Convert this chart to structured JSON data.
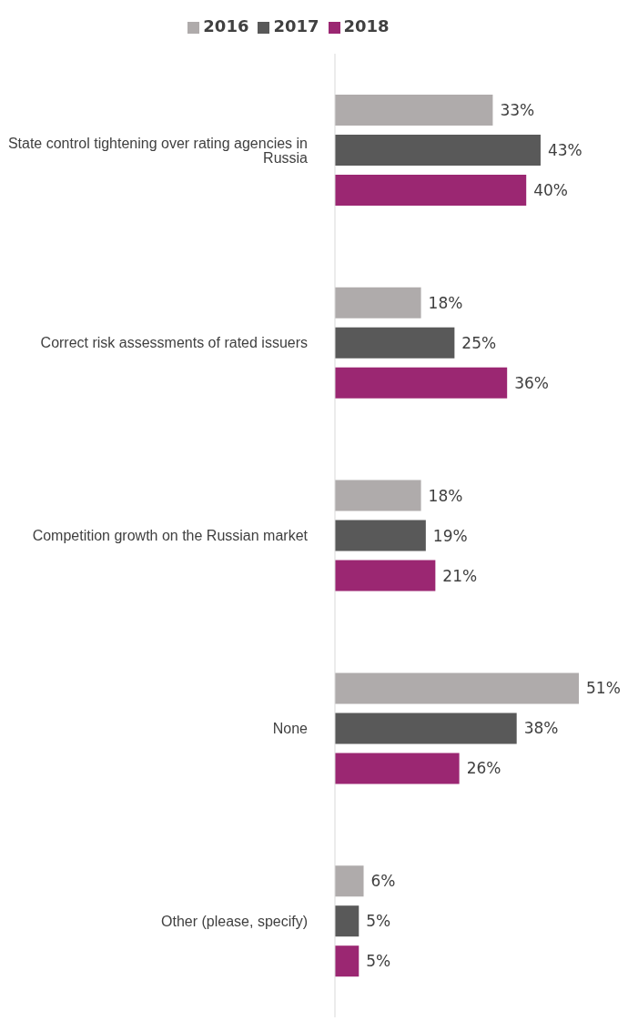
{
  "chart_data": {
    "type": "bar",
    "orientation": "horizontal",
    "legend": "top",
    "categories": [
      "State control tightening over rating agencies in Russia",
      "Correct risk assessments of rated issuers",
      "Competition growth on the Russian market",
      "None",
      "Other (please, specify)"
    ],
    "series": [
      {
        "name": "2016",
        "color": "#afabab",
        "values": [
          33,
          18,
          18,
          51,
          6
        ],
        "value_labels": [
          "33%",
          "18%",
          "18%",
          "51%",
          "6%"
        ]
      },
      {
        "name": "2017",
        "color": "#595959",
        "values": [
          43,
          25,
          19,
          38,
          5
        ],
        "value_labels": [
          "43%",
          "25%",
          "19%",
          "38%",
          "5%"
        ]
      },
      {
        "name": "2018",
        "color": "#9b2772",
        "values": [
          40,
          36,
          21,
          26,
          5
        ],
        "value_labels": [
          "40%",
          "36%",
          "21%",
          "26%",
          "5%"
        ]
      }
    ]
  }
}
